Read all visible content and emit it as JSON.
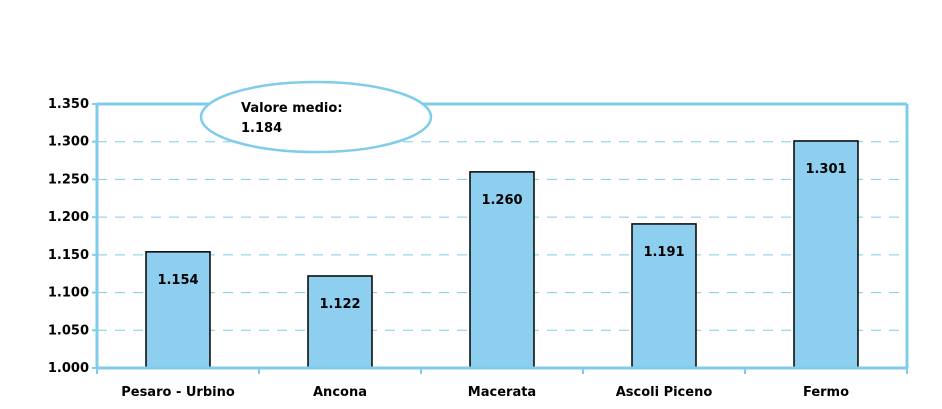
{
  "chart_data": {
    "type": "bar",
    "categories": [
      "Pesaro - Urbino",
      "Ancona",
      "Macerata",
      "Ascoli Piceno",
      "Fermo"
    ],
    "values": [
      1.154,
      1.122,
      1.26,
      1.191,
      1.301
    ],
    "data_labels": [
      "1.154",
      "1.122",
      "1.260",
      "1.191",
      "1.301"
    ],
    "ylim": [
      1.0,
      1.35
    ],
    "yticks": [
      1.0,
      1.05,
      1.1,
      1.15,
      1.2,
      1.25,
      1.3,
      1.35
    ],
    "ytick_labels": [
      "1.000",
      "1.050",
      "1.100",
      "1.150",
      "1.200",
      "1.250",
      "1.300",
      "1.350"
    ],
    "grid": true,
    "annotation": {
      "line1": "Valore medio:",
      "line2": "1.184"
    },
    "colors": {
      "bar": "#8ECFF0",
      "bar_edge": "#000000",
      "axis": "#7FCDEA",
      "grid": "#7FCDEA"
    }
  }
}
